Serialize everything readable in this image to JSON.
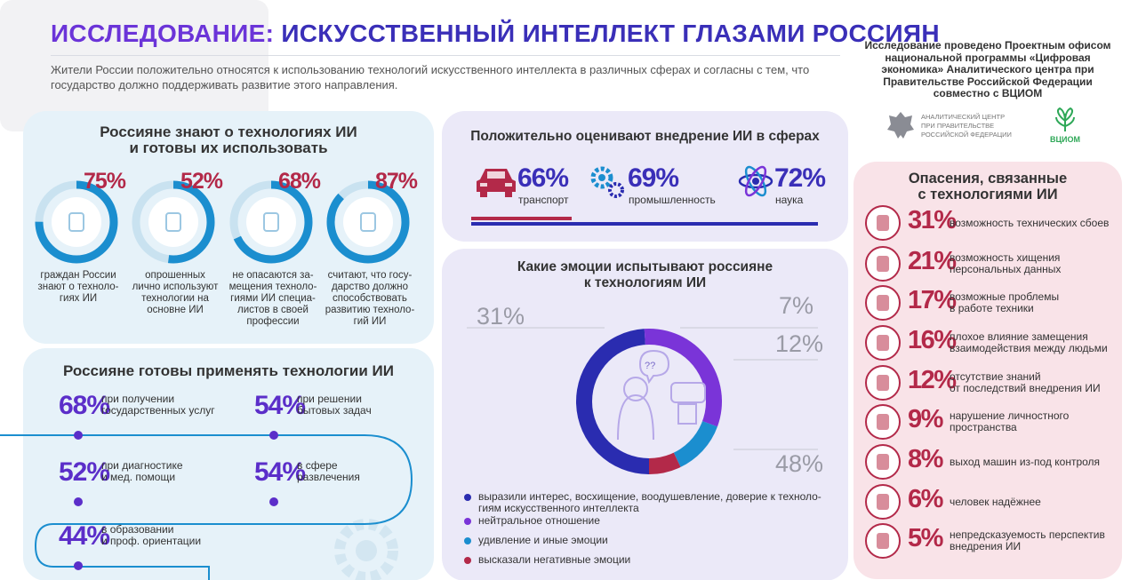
{
  "header": {
    "title_part1": "ИССЛЕДОВАНИЕ:",
    "title_part2": "ИСКУССТВЕННЫЙ ИНТЕЛЛЕКТ ГЛАЗАМИ РОССИЯН",
    "intro": "Жители России положительно относятся к использованию технологий искусственного интеллекта в различных сферах и согласны с тем, что государство должно поддерживать развитие этого направления."
  },
  "org": {
    "text": "Исследование проведено Проектным офисом национальной программы «Цифровая экономика» Аналитического центра при Правительстве Российской Федерации совместно с ВЦИОМ",
    "logo1": "АНАЛИТИЧЕСКИЙ ЦЕНТР\nПРИ ПРАВИТЕЛЬСТВЕ\nРОССИЙСКОЙ ФЕДЕРАЦИИ",
    "logo2": "ВЦИОМ"
  },
  "know": {
    "title": "Россияне знают о технологиях ИИ\nи готовы их использовать",
    "items": [
      {
        "pct": "75%",
        "value": 75,
        "text": "граждан России\nзнают о техноло-\nгиях ИИ"
      },
      {
        "pct": "52%",
        "value": 52,
        "text": "опрошенных\nлично используют\nтехнологии на\nосновне ИИ"
      },
      {
        "pct": "68%",
        "value": 68,
        "text": "не опасаются за-\nмещения техноло-\nгиями ИИ специа-\nлистов в своей\nпрофессии"
      },
      {
        "pct": "87%",
        "value": 87,
        "text": "считают, что госу-\nдарство должно\nспособствовать\nразвитию техноло-\nгий ИИ"
      }
    ]
  },
  "ready": {
    "title": "Россияне готовы применять технологии ИИ",
    "items": [
      {
        "pct": "68%",
        "text": "при получении\nгосударственных услуг"
      },
      {
        "pct": "54%",
        "text": "при решении\nбытовых задач"
      },
      {
        "pct": "52%",
        "text": "при диагностике\nи мед. помощи"
      },
      {
        "pct": "54%",
        "text": "в сфере\nразвлечения"
      },
      {
        "pct": "44%",
        "text": "в образовании\nи проф. ориентации"
      }
    ]
  },
  "positive": {
    "title": "Положительно оценивают внедрение ИИ в сферах",
    "items": [
      {
        "pct": "66%",
        "value": 66,
        "label": "транспорт",
        "icon": "car-icon"
      },
      {
        "pct": "69%",
        "value": 69,
        "label": "промышленность",
        "icon": "gears-icon"
      },
      {
        "pct": "72%",
        "value": 72,
        "label": "наука",
        "icon": "atom-icon"
      }
    ]
  },
  "emotions": {
    "title": "Какие эмоции испытывают россияне\nк технологиям ИИ",
    "labels": {
      "neutral": "31%",
      "negative": "7%",
      "surprise": "12%",
      "interest": "48%"
    },
    "legend": [
      {
        "text": "выразили интерес, восхищение, воодушевление, доверие к техноло-\nгиям искусственного интеллекта",
        "color": "#2a2cb0"
      },
      {
        "text": "нейтральное отношение",
        "color": "#7a34d8"
      },
      {
        "text": "удивление и иные эмоции",
        "color": "#1b8ecf"
      },
      {
        "text": "высказали негативные эмоции",
        "color": "#b32949"
      }
    ]
  },
  "chart_data": {
    "type": "pie",
    "categories": [
      "выразили интерес, восхищение, воодушевление, доверие к технологиям искусственного интеллекта",
      "нейтральное отношение",
      "удивление и иные эмоции",
      "высказали негативные эмоции"
    ],
    "values": [
      48,
      31,
      12,
      7
    ],
    "colors": [
      "#2a2cb0",
      "#7a34d8",
      "#1b8ecf",
      "#b32949"
    ]
  },
  "fears": {
    "title": "Опасения, связанные\nс технологиями ИИ",
    "items": [
      {
        "pct": "31%",
        "text": "возможность технических сбоев"
      },
      {
        "pct": "21%",
        "text": "возможность хищения\nперсональных данных"
      },
      {
        "pct": "17%",
        "text": "возможные проблемы\nв работе техники"
      },
      {
        "pct": "16%",
        "text": "плохое влияние замещения\nвзаимодействия между людьми"
      },
      {
        "pct": "12%",
        "text": "отсутствие знаний\nот последствий внедрения ИИ"
      },
      {
        "pct": "9%",
        "text": "нарушение личностного\nпространства"
      },
      {
        "pct": "8%",
        "text": "выход машин из-под контроля"
      },
      {
        "pct": "6%",
        "text": "человек надёжнее"
      },
      {
        "pct": "5%",
        "text": "непредсказуемость перспектив\nвнедрения ИИ"
      }
    ]
  },
  "colors": {
    "purple": "#5b2ec9",
    "blue": "#1b8ecf",
    "crimson": "#b32949",
    "navy": "#2a2cb0"
  }
}
